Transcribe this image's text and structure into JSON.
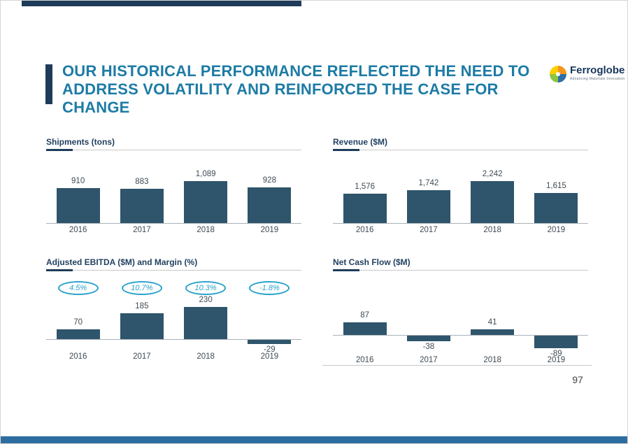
{
  "slide": {
    "title_lines": [
      "OUR HISTORICAL PERFORMANCE REFLECTED THE NEED TO",
      "ADDRESS VOLATILITY AND REINFORCED THE CASE FOR CHANGE"
    ],
    "page_number": "97",
    "logo": {
      "brand": "Ferroglobe",
      "tagline": "Advancing Materials Innovation"
    }
  },
  "colors": {
    "bar": "#2e556b",
    "navy": "#1e3c59",
    "teal_title": "#1d7ba5",
    "badge": "#29a3cc",
    "bottom_bar": "#2e6da0"
  },
  "chart_data": [
    {
      "type": "bar",
      "title": "Shipments (tons)",
      "categories": [
        "2016",
        "2017",
        "2018",
        "2019"
      ],
      "values": [
        910,
        883,
        1089,
        928
      ],
      "labels": [
        "910",
        "883",
        "1,089",
        "928"
      ],
      "ylim": [
        0,
        1089
      ],
      "grid": false,
      "legend": "none"
    },
    {
      "type": "bar",
      "title": "Revenue ($M)",
      "categories": [
        "2016",
        "2017",
        "2018",
        "2019"
      ],
      "values": [
        1576,
        1742,
        2242,
        1615
      ],
      "labels": [
        "1,576",
        "1,742",
        "2,242",
        "1,615"
      ],
      "ylim": [
        0,
        2242
      ],
      "grid": false,
      "legend": "none"
    },
    {
      "type": "bar",
      "title": "Adjusted EBITDA ($M) and Margin (%)",
      "categories": [
        "2016",
        "2017",
        "2018",
        "2019"
      ],
      "values": [
        70,
        185,
        230,
        -29
      ],
      "labels": [
        "70",
        "185",
        "230",
        "-29"
      ],
      "margins": [
        "4.5%",
        "10.7%",
        "10.3%",
        "-1.8%"
      ],
      "ylim": [
        -29,
        230
      ],
      "grid": false,
      "legend": "none"
    },
    {
      "type": "bar",
      "title": "Net Cash Flow ($M)",
      "categories": [
        "2016",
        "2017",
        "2018",
        "2019"
      ],
      "values": [
        87,
        -38,
        41,
        -89
      ],
      "labels": [
        "87",
        "-38",
        "41",
        "-89"
      ],
      "ylim": [
        -89,
        87
      ],
      "grid": false,
      "legend": "none"
    }
  ]
}
